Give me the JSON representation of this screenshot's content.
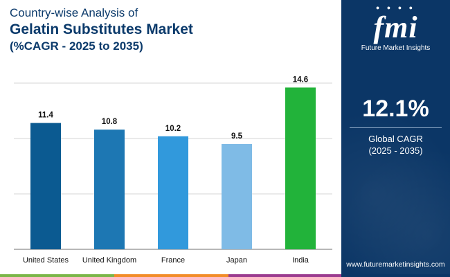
{
  "header": {
    "line1": "Country-wise Analysis of",
    "line2": "Gelatin Substitutes Market",
    "line3": "(%CAGR - 2025 to 2035)"
  },
  "chart_data": {
    "type": "bar",
    "title": "Gelatin Substitutes Market",
    "categories": [
      "United States",
      "United Kingdom",
      "France",
      "Japan",
      "India"
    ],
    "values": [
      11.4,
      10.8,
      10.2,
      9.5,
      14.6
    ],
    "value_labels": [
      "11.4",
      "10.8",
      "10.2",
      "9.5",
      "14.6"
    ],
    "colors": [
      "#0b5a91",
      "#1d77b3",
      "#3199dc",
      "#7fbbe6",
      "#22b33a"
    ],
    "ylim": [
      0,
      15
    ],
    "gridlines": [
      0,
      5,
      10,
      15
    ],
    "xlabel": "",
    "ylabel": ""
  },
  "side_panel": {
    "logo_text": "fmi",
    "logo_icons": "● ● ● ●",
    "logo_subtitle": "Future Market Insights",
    "cagr_value": "12.1%",
    "cagr_label": "Global CAGR",
    "cagr_period": "(2025 - 2035)",
    "website": "www.futuremarketinsights.com",
    "background_color": "#0b3666"
  },
  "footer_colors": [
    "#7ab648",
    "#f28c28",
    "#9b3b8f",
    "#0b3666"
  ]
}
